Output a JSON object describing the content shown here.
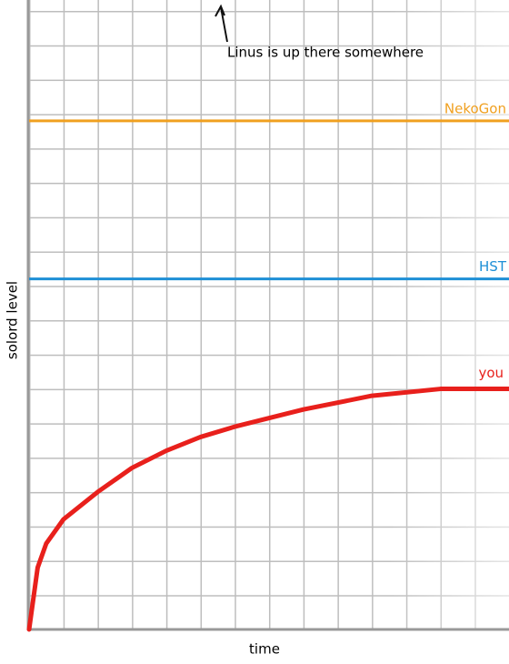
{
  "chart_data": {
    "type": "line",
    "xlabel": "time",
    "ylabel": "solord level",
    "x": [
      0,
      0.25,
      0.5,
      1,
      2,
      3,
      4,
      5,
      6,
      8,
      10,
      12,
      14
    ],
    "xlim": [
      0,
      14
    ],
    "ylim": [
      0,
      18
    ],
    "series": [
      {
        "name": "you",
        "color": "#e8201c",
        "values": [
          0,
          1.8,
          2.5,
          3.2,
          4.0,
          4.7,
          5.2,
          5.6,
          5.9,
          6.4,
          6.8,
          7.0,
          7.0
        ]
      }
    ],
    "reference_lines": [
      {
        "name": "NekoGon",
        "value": 14.8,
        "color": "#f0a020"
      },
      {
        "name": "HST",
        "value": 10.2,
        "color": "#1e8fd6"
      }
    ],
    "annotation": {
      "text": "Linus is up there somewhere"
    }
  }
}
